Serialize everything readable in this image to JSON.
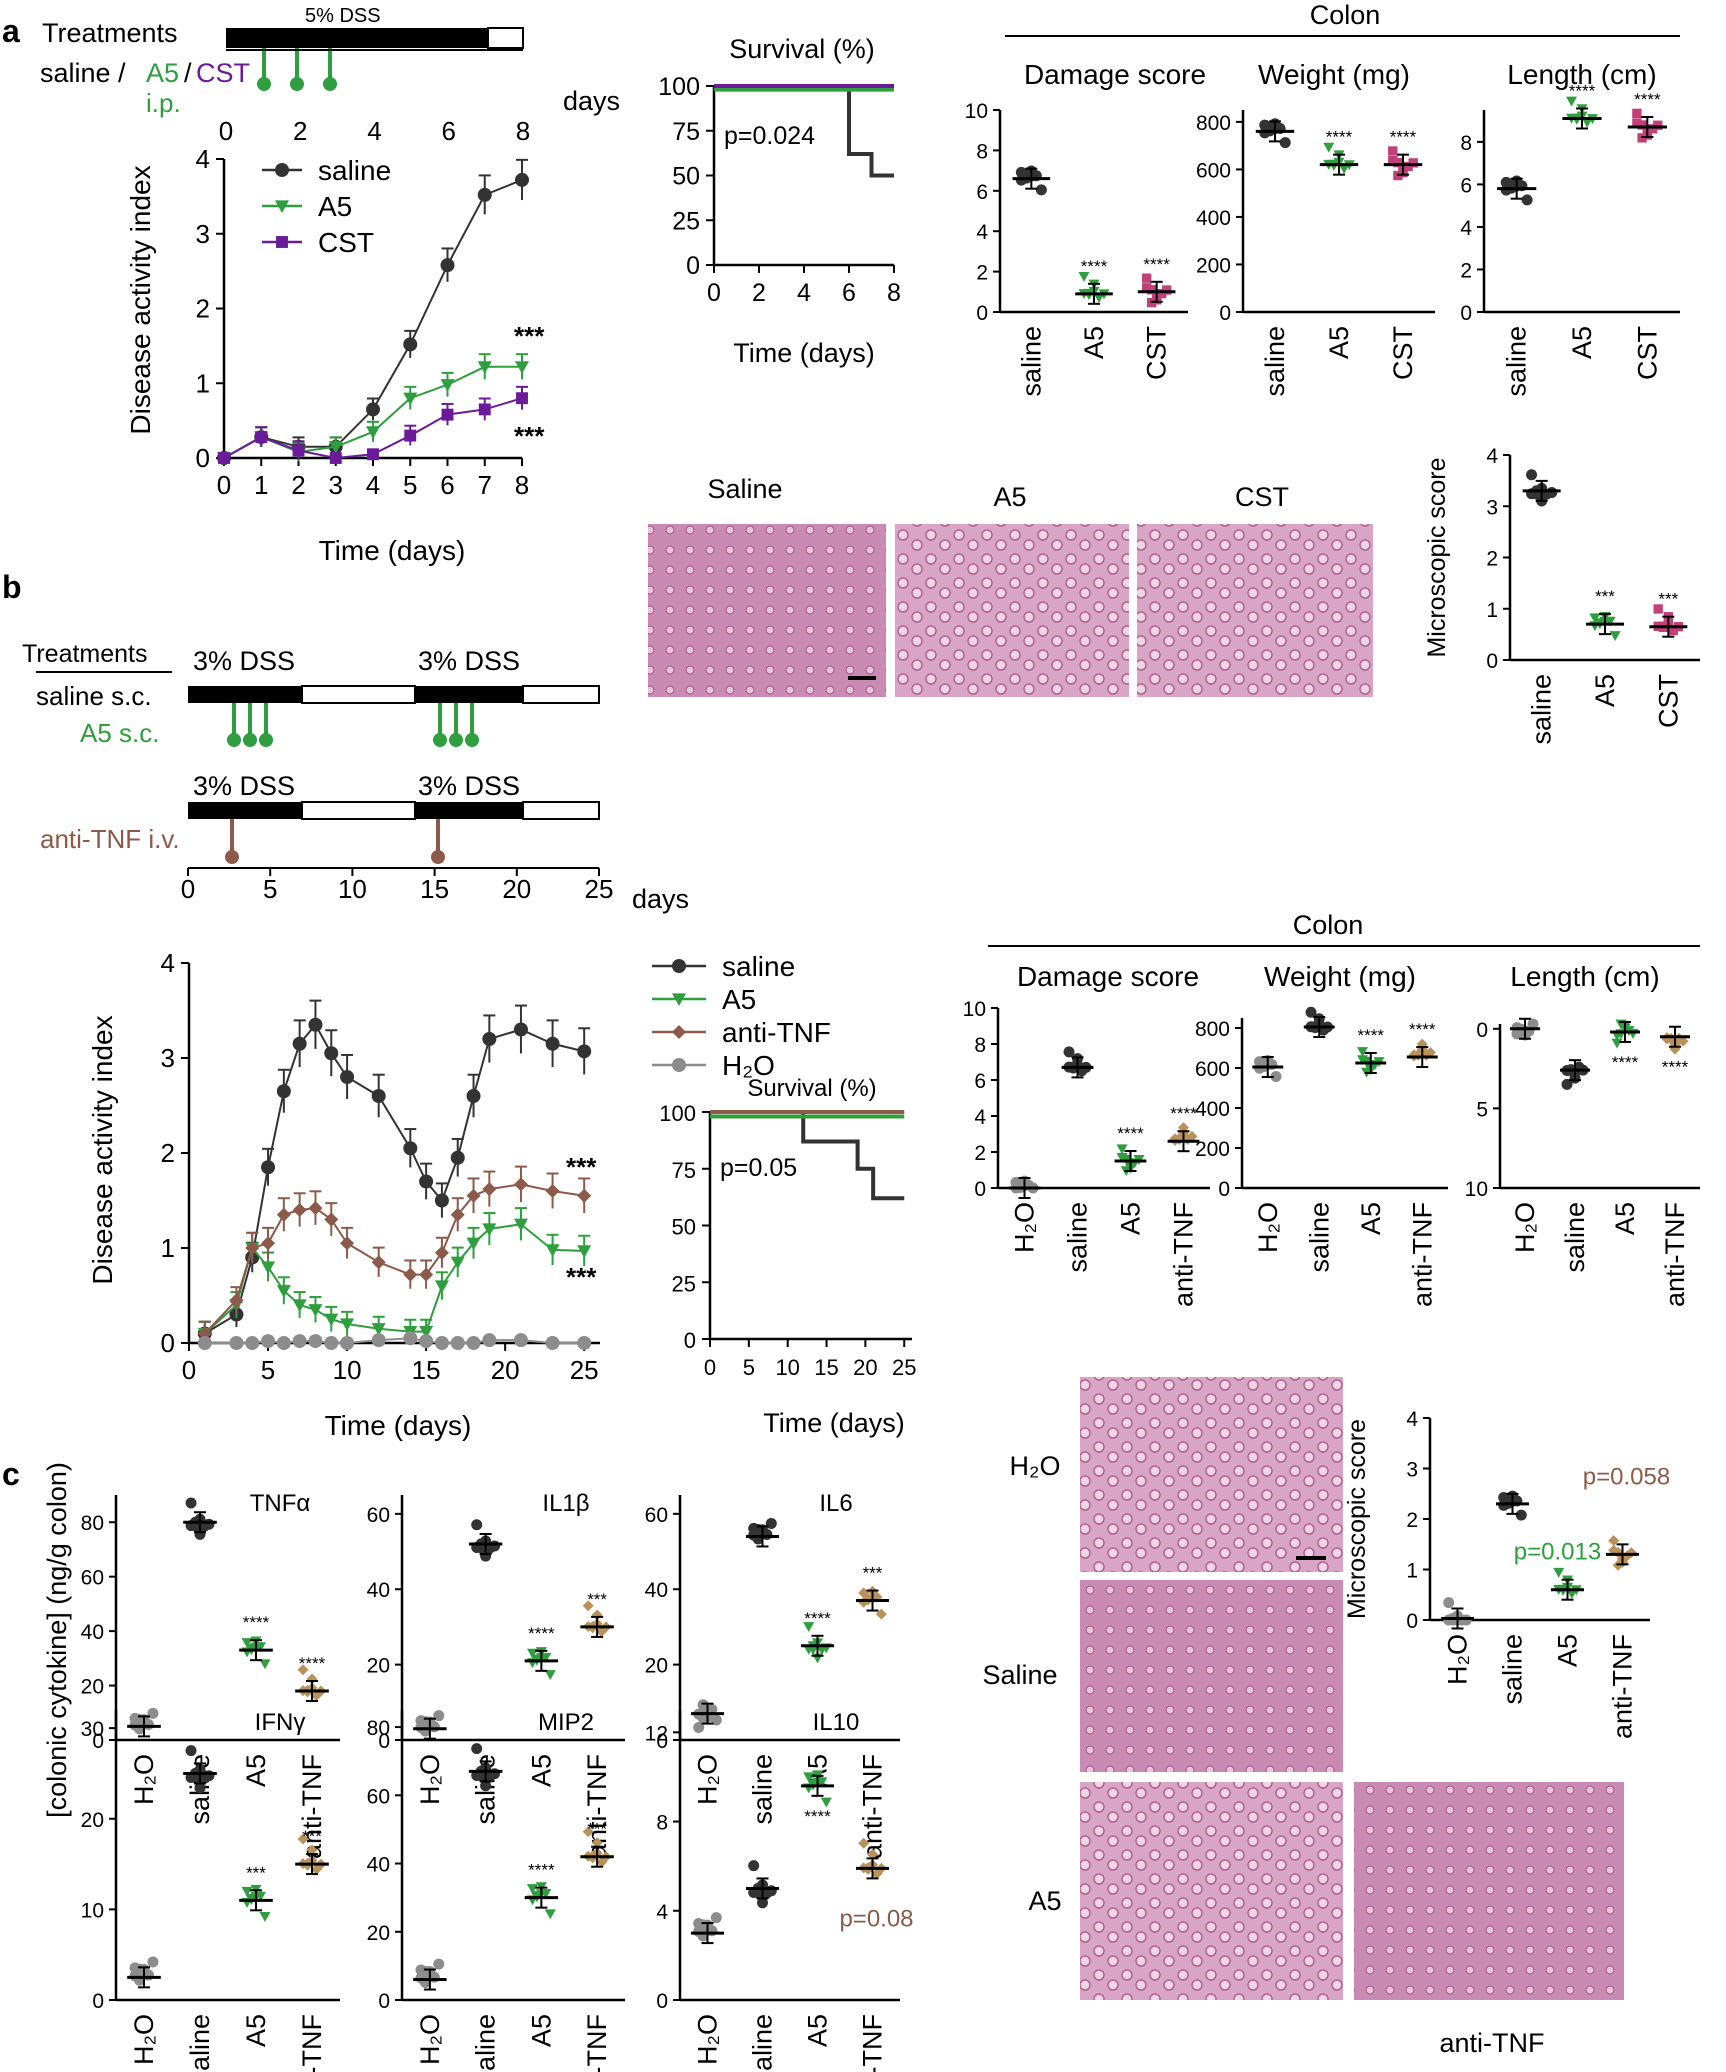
{
  "panel_labels": {
    "a": "a",
    "b": "b",
    "c": "c"
  },
  "colors": {
    "saline": "#333333",
    "a5": "#2e9e3e",
    "cst": "#6a1b9a",
    "antitnf": "#8b5a4a",
    "h2o": "#8c8c8c",
    "cst_dot": "#c0407a",
    "antitnf_dot": "#b8925a"
  },
  "panel_a": {
    "treat_title": "Treatments",
    "treat_saline": "saline /",
    "treat_a5": "A5",
    "treat_slash": "/",
    "treat_cst": "CST",
    "treat_route": "i.p.",
    "dss_label": "5% DSS",
    "days_label": "days",
    "day_ticks": [
      "0",
      "2",
      "4",
      "6",
      "8"
    ],
    "dai_ylabel": "Disease activity index",
    "dai_xlabel": "Time (days)",
    "legend": [
      "saline",
      "A5",
      "CST"
    ],
    "sig_a5": "***",
    "sig_cst": "***",
    "survival_title": "Survival (%)",
    "survival_p": "p=0.024",
    "survival_xlabel": "Time (days)",
    "colon_title": "Colon",
    "damage_title": "Damage score",
    "weight_title": "Weight (mg)",
    "length_title": "Length (cm)",
    "groups": [
      "saline",
      "A5",
      "CST"
    ],
    "hist_labels": [
      "Saline",
      "A5",
      "CST"
    ],
    "micro_ylabel": "Microscopic score"
  },
  "panel_b": {
    "treat_title": "Treatments",
    "dss_label": "3% DSS",
    "saline_route": "saline s.c.",
    "a5_route": "A5 s.c.",
    "antitnf_route": "anti-TNF i.v.",
    "days_label": "days",
    "day_ticks": [
      "0",
      "5",
      "10",
      "15",
      "20",
      "25"
    ],
    "dai_ylabel": "Disease activity index",
    "dai_xlabel": "Time (days)",
    "legend": [
      "saline",
      "A5",
      "anti-TNF",
      "H₂O"
    ],
    "sig_antitnf": "***",
    "sig_a5": "***",
    "survival_title": "Survival (%)",
    "survival_p": "p=0.05",
    "survival_xlabel": "Time (days)",
    "colon_title": "Colon",
    "damage_title": "Damage score",
    "weight_title": "Weight (mg)",
    "length_title": "Length (cm)",
    "groups": [
      "H₂O",
      "saline",
      "A5",
      "anti-TNF"
    ],
    "hist_labels": [
      "H₂O",
      "Saline",
      "A5",
      "anti-TNF"
    ],
    "micro_ylabel": "Microscopic score",
    "micro_p_a5": "p=0.013",
    "micro_p_antitnf": "p=0.058"
  },
  "panel_c": {
    "ylabel": "[colonic cytokine] (ng/g colon)",
    "groups": [
      "H₂O",
      "saline",
      "A5",
      "anti-TNF"
    ],
    "p_il10": "p=0.08"
  },
  "chart_data": [
    {
      "id": "a-dai",
      "type": "line",
      "title": "",
      "xlabel": "Time (days)",
      "ylabel": "Disease activity index",
      "x": [
        0,
        1,
        2,
        3,
        4,
        5,
        6,
        7,
        8
      ],
      "xlim": [
        0,
        8
      ],
      "ylim": [
        0,
        4
      ],
      "yticks": [
        0,
        1,
        2,
        3,
        4
      ],
      "series": [
        {
          "name": "saline",
          "values": [
            0,
            0.28,
            0.15,
            0.15,
            0.65,
            1.52,
            2.58,
            3.52,
            3.72
          ]
        },
        {
          "name": "A5",
          "values": [
            0,
            0.28,
            0.08,
            0.15,
            0.35,
            0.8,
            0.98,
            1.22,
            1.22
          ]
        },
        {
          "name": "CST",
          "values": [
            0,
            0.28,
            0.1,
            0,
            0.05,
            0.3,
            0.58,
            0.65,
            0.8
          ]
        }
      ],
      "annotations": [
        "***",
        "***"
      ]
    },
    {
      "id": "a-surv",
      "type": "line",
      "title": "Survival (%)",
      "xlabel": "Time (days)",
      "xlim": [
        0,
        8
      ],
      "ylim": [
        0,
        100
      ],
      "yticks": [
        0,
        25,
        50,
        75,
        100
      ],
      "xticks": [
        0,
        2,
        4,
        6,
        8
      ],
      "series": [
        {
          "name": "saline",
          "x": [
            0,
            6,
            6,
            7,
            7,
            8
          ],
          "values": [
            100,
            100,
            62,
            62,
            50,
            50
          ]
        },
        {
          "name": "A5",
          "x": [
            0,
            8
          ],
          "values": [
            98,
            98
          ]
        },
        {
          "name": "CST",
          "x": [
            0,
            8
          ],
          "values": [
            100,
            100
          ]
        }
      ],
      "annotations": [
        "p=0.024"
      ]
    },
    {
      "id": "a-damage",
      "type": "scatter",
      "title": "Damage score",
      "categories": [
        "saline",
        "A5",
        "CST"
      ],
      "ylim": [
        0,
        10
      ],
      "yticks": [
        0,
        2,
        4,
        6,
        8,
        10
      ],
      "means": [
        6.6,
        0.9,
        1.0
      ],
      "sig": [
        "",
        "****",
        "****"
      ]
    },
    {
      "id": "a-weight",
      "type": "scatter",
      "title": "Weight (mg)",
      "categories": [
        "saline",
        "A5",
        "CST"
      ],
      "ylim": [
        0,
        850
      ],
      "yticks": [
        0,
        200,
        400,
        600,
        800
      ],
      "means": [
        760,
        620,
        620
      ],
      "sig": [
        "",
        "****",
        "****"
      ]
    },
    {
      "id": "a-length",
      "type": "scatter",
      "title": "Length (cm)",
      "categories": [
        "saline",
        "A5",
        "CST"
      ],
      "ylim": [
        0,
        9.5
      ],
      "yticks": [
        0,
        2,
        4,
        6,
        8
      ],
      "means": [
        5.8,
        9.1,
        8.7
      ],
      "sig": [
        "",
        "****",
        "****"
      ]
    },
    {
      "id": "a-micro",
      "type": "scatter",
      "title": "",
      "ylabel": "Microscopic score",
      "categories": [
        "saline",
        "A5",
        "CST"
      ],
      "ylim": [
        0,
        4
      ],
      "yticks": [
        0,
        1,
        2,
        3,
        4
      ],
      "means": [
        3.3,
        0.7,
        0.65
      ],
      "sig": [
        "",
        "***",
        "***"
      ]
    },
    {
      "id": "b-dai",
      "type": "line",
      "xlabel": "Time (days)",
      "ylabel": "Disease activity index",
      "xlim": [
        0,
        26
      ],
      "ylim": [
        0,
        4
      ],
      "yticks": [
        0,
        1,
        2,
        3,
        4
      ],
      "xticks": [
        0,
        5,
        10,
        15,
        20,
        25
      ],
      "series": [
        {
          "name": "saline",
          "x": [
            1,
            3,
            4,
            5,
            6,
            7,
            8,
            9,
            10,
            12,
            14,
            15,
            16,
            17,
            18,
            19,
            21,
            23,
            25
          ],
          "values": [
            0.1,
            0.3,
            0.9,
            1.85,
            2.65,
            3.15,
            3.35,
            3.05,
            2.8,
            2.6,
            2.05,
            1.7,
            1.5,
            1.95,
            2.6,
            3.2,
            3.3,
            3.15,
            3.07
          ]
        },
        {
          "name": "A5",
          "x": [
            1,
            3,
            4,
            5,
            6,
            7,
            8,
            9,
            10,
            12,
            14,
            15,
            16,
            17,
            18,
            19,
            21,
            23,
            25
          ],
          "values": [
            0.1,
            0.4,
            1.0,
            0.8,
            0.55,
            0.4,
            0.35,
            0.25,
            0.2,
            0.15,
            0.12,
            0.12,
            0.6,
            0.85,
            1.05,
            1.2,
            1.25,
            0.98,
            0.97
          ]
        },
        {
          "name": "anti-TNF",
          "x": [
            1,
            3,
            4,
            5,
            6,
            7,
            8,
            9,
            10,
            12,
            14,
            15,
            16,
            17,
            18,
            19,
            21,
            23,
            25
          ],
          "values": [
            0.1,
            0.45,
            1.0,
            1.05,
            1.35,
            1.4,
            1.42,
            1.3,
            1.05,
            0.85,
            0.72,
            0.72,
            0.95,
            1.35,
            1.55,
            1.62,
            1.67,
            1.6,
            1.55
          ]
        },
        {
          "name": "H₂O",
          "x": [
            1,
            3,
            4,
            5,
            6,
            7,
            8,
            9,
            10,
            12,
            14,
            15,
            16,
            17,
            18,
            19,
            21,
            23,
            25
          ],
          "values": [
            0,
            0,
            0,
            0.02,
            0,
            0.02,
            0.02,
            0,
            0,
            0.03,
            0.05,
            0.02,
            0,
            0,
            0,
            0.03,
            0.03,
            0,
            0
          ]
        }
      ],
      "annotations": [
        "***",
        "***"
      ]
    },
    {
      "id": "b-surv",
      "type": "line",
      "title": "Survival (%)",
      "xlabel": "Time (days)",
      "xlim": [
        0,
        26
      ],
      "ylim": [
        0,
        100
      ],
      "yticks": [
        0,
        25,
        50,
        75,
        100
      ],
      "xticks": [
        0,
        5,
        10,
        15,
        20,
        25
      ],
      "series": [
        {
          "name": "saline",
          "x": [
            0,
            12,
            12,
            19,
            19,
            21,
            21,
            25
          ],
          "values": [
            100,
            100,
            87,
            87,
            75,
            75,
            62,
            62
          ]
        },
        {
          "name": "A5",
          "x": [
            0,
            25
          ],
          "values": [
            98,
            98
          ]
        },
        {
          "name": "anti-TNF",
          "x": [
            0,
            25
          ],
          "values": [
            100,
            100
          ]
        }
      ],
      "annotations": [
        "p=0.05"
      ]
    },
    {
      "id": "b-damage",
      "type": "scatter",
      "title": "Damage score",
      "categories": [
        "H₂O",
        "saline",
        "A5",
        "anti-TNF"
      ],
      "ylim": [
        0,
        10
      ],
      "yticks": [
        0,
        2,
        4,
        6,
        8,
        10
      ],
      "means": [
        0,
        6.7,
        1.5,
        2.6
      ],
      "sig": [
        "",
        "",
        "****",
        "****"
      ]
    },
    {
      "id": "b-weight",
      "type": "scatter",
      "title": "Weight (mg)",
      "categories": [
        "H₂O",
        "saline",
        "A5",
        "anti-TNF"
      ],
      "ylim": [
        0,
        850
      ],
      "yticks": [
        0,
        200,
        400,
        600,
        800
      ],
      "means": [
        605,
        805,
        625,
        655
      ],
      "sig": [
        "",
        "",
        "****",
        "****"
      ]
    },
    {
      "id": "b-length",
      "type": "scatter",
      "title": "Length (cm)",
      "categories": [
        "H₂O",
        "saline",
        "A5",
        "anti-TNF"
      ],
      "ylim": [
        -0.3,
        10
      ],
      "yticks": [
        0,
        5,
        10
      ],
      "inverted": true,
      "means": [
        0,
        2.6,
        0.2,
        0.5
      ],
      "sig": [
        "",
        "",
        "****",
        "****"
      ]
    },
    {
      "id": "b-micro",
      "type": "scatter",
      "ylabel": "Microscopic score",
      "categories": [
        "H₂O",
        "saline",
        "A5",
        "anti-TNF"
      ],
      "ylim": [
        0,
        4
      ],
      "yticks": [
        0,
        1,
        2,
        3,
        4
      ],
      "means": [
        0.03,
        2.3,
        0.6,
        1.3
      ],
      "sig": [
        "",
        "",
        "p=0.013",
        "p=0.058"
      ]
    },
    {
      "id": "c-tnfa",
      "type": "scatter",
      "title": "TNFα",
      "categories": [
        "H₂O",
        "saline",
        "A5",
        "anti-TNF"
      ],
      "ylim": [
        0,
        90
      ],
      "yticks": [
        0,
        20,
        40,
        60,
        80
      ],
      "means": [
        5,
        80,
        33,
        18
      ],
      "sig": [
        "",
        "",
        "****",
        "****"
      ]
    },
    {
      "id": "c-il1b",
      "type": "scatter",
      "title": "IL1β",
      "categories": [
        "H₂O",
        "saline",
        "A5",
        "anti-TNF"
      ],
      "ylim": [
        0,
        65
      ],
      "yticks": [
        0,
        20,
        40,
        60
      ],
      "means": [
        3,
        52,
        21,
        30
      ],
      "sig": [
        "",
        "",
        "****",
        "***"
      ]
    },
    {
      "id": "c-il6",
      "type": "scatter",
      "title": "IL6",
      "categories": [
        "H₂O",
        "saline",
        "A5",
        "anti-TNF"
      ],
      "ylim": [
        0,
        65
      ],
      "yticks": [
        0,
        20,
        40,
        60
      ],
      "means": [
        7,
        54,
        25,
        37
      ],
      "sig": [
        "",
        "",
        "****",
        "***"
      ]
    },
    {
      "id": "c-ifng",
      "type": "scatter",
      "title": "IFNγ",
      "categories": [
        "H₂O",
        "saline",
        "A5",
        "anti-TNF"
      ],
      "ylim": [
        0,
        32
      ],
      "yticks": [
        0,
        10,
        20,
        30
      ],
      "means": [
        2.5,
        25,
        11,
        15
      ],
      "sig": [
        "",
        "",
        "***",
        "***"
      ]
    },
    {
      "id": "c-mip2",
      "type": "scatter",
      "title": "MIP2",
      "categories": [
        "H₂O",
        "saline",
        "A5",
        "anti-TNF"
      ],
      "ylim": [
        0,
        85
      ],
      "yticks": [
        0,
        20,
        40,
        60,
        80
      ],
      "means": [
        6,
        67,
        30,
        42
      ],
      "sig": [
        "",
        "",
        "****",
        "***"
      ]
    },
    {
      "id": "c-il10",
      "type": "scatter",
      "title": "IL10",
      "categories": [
        "H₂O",
        "saline",
        "A5",
        "anti-TNF"
      ],
      "ylim": [
        0,
        13
      ],
      "yticks": [
        0,
        4,
        8,
        12
      ],
      "means": [
        3,
        5,
        9.6,
        5.9
      ],
      "sig": [
        "",
        "",
        "****",
        "p=0.08"
      ]
    }
  ]
}
